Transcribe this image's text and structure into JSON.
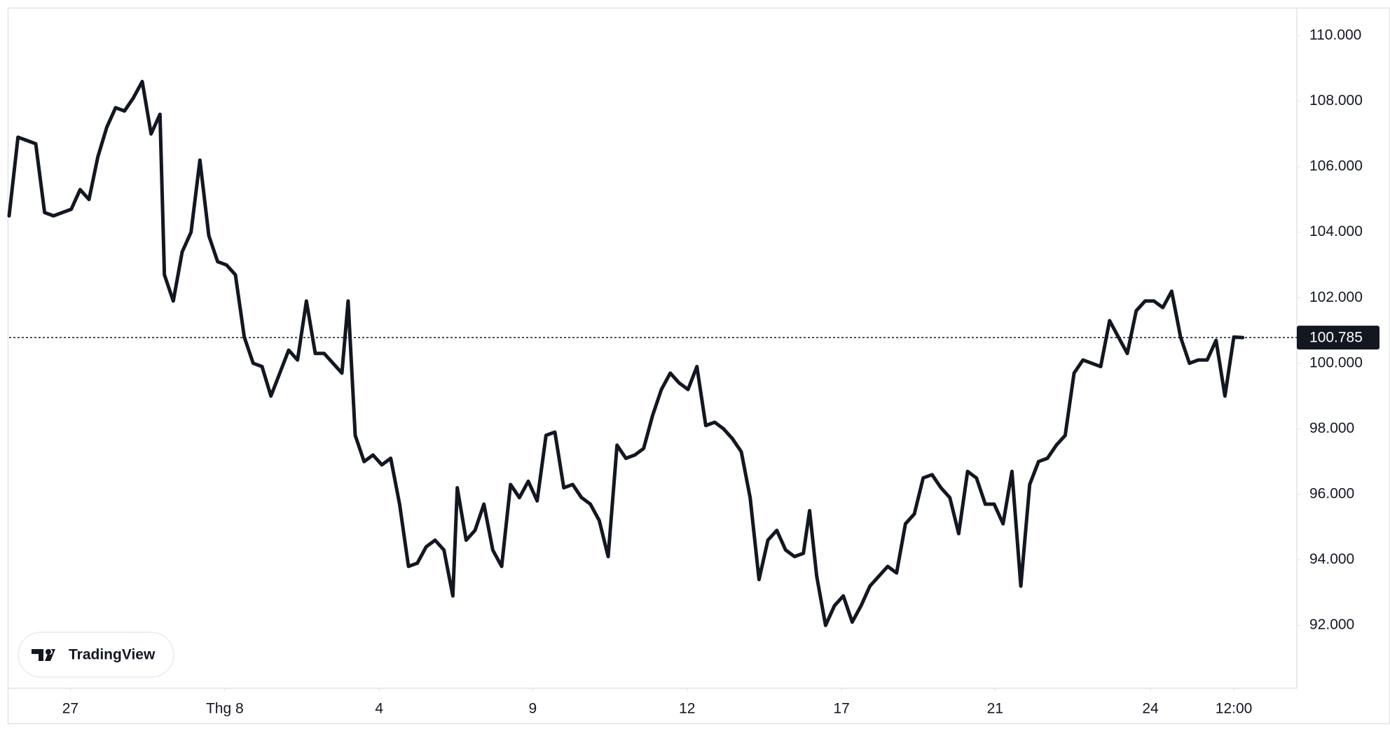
{
  "chart_data": {
    "type": "line",
    "color": "#131722",
    "watermark": "TradingView",
    "x": [
      0,
      1,
      2,
      3,
      4,
      5,
      6,
      7,
      8,
      9,
      10,
      11,
      12,
      13,
      14,
      15,
      16,
      17,
      17.5,
      18.5,
      19.5,
      20.5,
      21.5,
      22.5,
      23.5,
      24.5,
      25.5,
      26.5,
      27.5,
      28.5,
      29.5,
      30.5,
      31.5,
      32.5,
      33.5,
      34.5,
      35.5,
      36.5,
      37.5,
      38.2,
      39,
      40,
      41,
      42,
      43,
      44,
      45,
      46,
      47,
      48,
      49,
      50,
      50.5,
      51.5,
      52.5,
      53.5,
      54.5,
      55.5,
      56.5,
      57.5,
      58.5,
      59.5,
      60.5,
      61.5,
      62.5,
      63.5,
      64.5,
      65.5,
      66.5,
      67.5,
      68.5,
      69.5,
      70.5,
      71.5,
      72.5,
      73.5,
      74.5,
      75.5,
      76.5,
      77.5,
      78.5,
      79.5,
      80.5,
      81.5,
      82.5,
      83.5,
      84.5,
      85.5,
      86.5,
      87.5,
      88.5,
      89.5,
      90.2,
      91,
      92,
      93,
      94,
      95,
      96,
      97,
      98,
      99,
      100,
      101,
      102,
      103,
      104,
      105,
      106,
      107,
      108,
      109,
      110,
      111,
      112,
      113,
      114,
      115,
      116,
      117,
      118,
      119,
      120,
      121,
      122,
      123,
      124,
      125,
      126,
      127,
      128,
      129,
      130,
      131,
      132,
      133,
      134,
      135,
      136,
      137,
      138,
      139
    ],
    "values": [
      104.5,
      106.9,
      106.8,
      106.7,
      104.6,
      104.5,
      104.6,
      104.7,
      105.3,
      105.0,
      106.3,
      107.2,
      107.8,
      107.7,
      108.1,
      108.6,
      107.0,
      107.6,
      102.7,
      101.9,
      103.4,
      104.0,
      106.2,
      103.9,
      103.1,
      103.0,
      102.7,
      100.8,
      100.0,
      99.9,
      99.0,
      99.7,
      100.4,
      100.1,
      101.9,
      100.3,
      100.3,
      100.0,
      99.7,
      101.9,
      97.8,
      97.0,
      97.2,
      96.9,
      97.1,
      95.7,
      93.8,
      93.9,
      94.4,
      94.6,
      94.3,
      92.9,
      96.2,
      94.6,
      94.9,
      95.7,
      94.3,
      93.8,
      96.3,
      95.9,
      96.4,
      95.8,
      97.8,
      97.9,
      96.2,
      96.3,
      95.9,
      95.7,
      95.2,
      94.1,
      97.5,
      97.1,
      97.2,
      97.4,
      98.4,
      99.2,
      99.7,
      99.4,
      99.2,
      99.9,
      98.1,
      98.2,
      98.0,
      97.7,
      97.3,
      95.9,
      93.4,
      94.6,
      94.9,
      94.3,
      94.1,
      94.2,
      95.5,
      93.5,
      92.0,
      92.6,
      92.9,
      92.1,
      92.6,
      93.2,
      93.5,
      93.8,
      93.6,
      95.1,
      95.4,
      96.5,
      96.6,
      96.2,
      95.9,
      94.8,
      96.7,
      96.5,
      95.7,
      95.7,
      95.1,
      96.7,
      93.2,
      96.3,
      97.0,
      97.1,
      97.5,
      97.8,
      99.7,
      100.1,
      100.0,
      99.9,
      101.3,
      100.8,
      100.3,
      101.6,
      101.9,
      101.9,
      101.7,
      102.2,
      100.8,
      100.0,
      100.1,
      100.1,
      100.7,
      99.0,
      100.8,
      100.785
    ],
    "xlim": [
      0,
      145.1
    ],
    "xticks": [
      {
        "value": 6.9,
        "label": "27"
      },
      {
        "value": 24.3,
        "label": "Thg 8"
      },
      {
        "value": 41.7,
        "label": "4"
      },
      {
        "value": 59,
        "label": "9"
      },
      {
        "value": 76.4,
        "label": "12"
      },
      {
        "value": 93.8,
        "label": "17"
      },
      {
        "value": 111.1,
        "label": "21"
      },
      {
        "value": 128.6,
        "label": "24"
      },
      {
        "value": 138,
        "label": "12:00"
      }
    ],
    "ylim": [
      90.08,
      110.81
    ],
    "yticks": [
      {
        "value": 92,
        "label": "92.000"
      },
      {
        "value": 94,
        "label": "94.000"
      },
      {
        "value": 96,
        "label": "96.000"
      },
      {
        "value": 98,
        "label": "98.000"
      },
      {
        "value": 100,
        "label": "100.000"
      },
      {
        "value": 102,
        "label": "102.000"
      },
      {
        "value": 104,
        "label": "104.000"
      },
      {
        "value": 106,
        "label": "106.000"
      },
      {
        "value": 108,
        "label": "108.000"
      },
      {
        "value": 110,
        "label": "110.000"
      }
    ],
    "grid": false
  }
}
